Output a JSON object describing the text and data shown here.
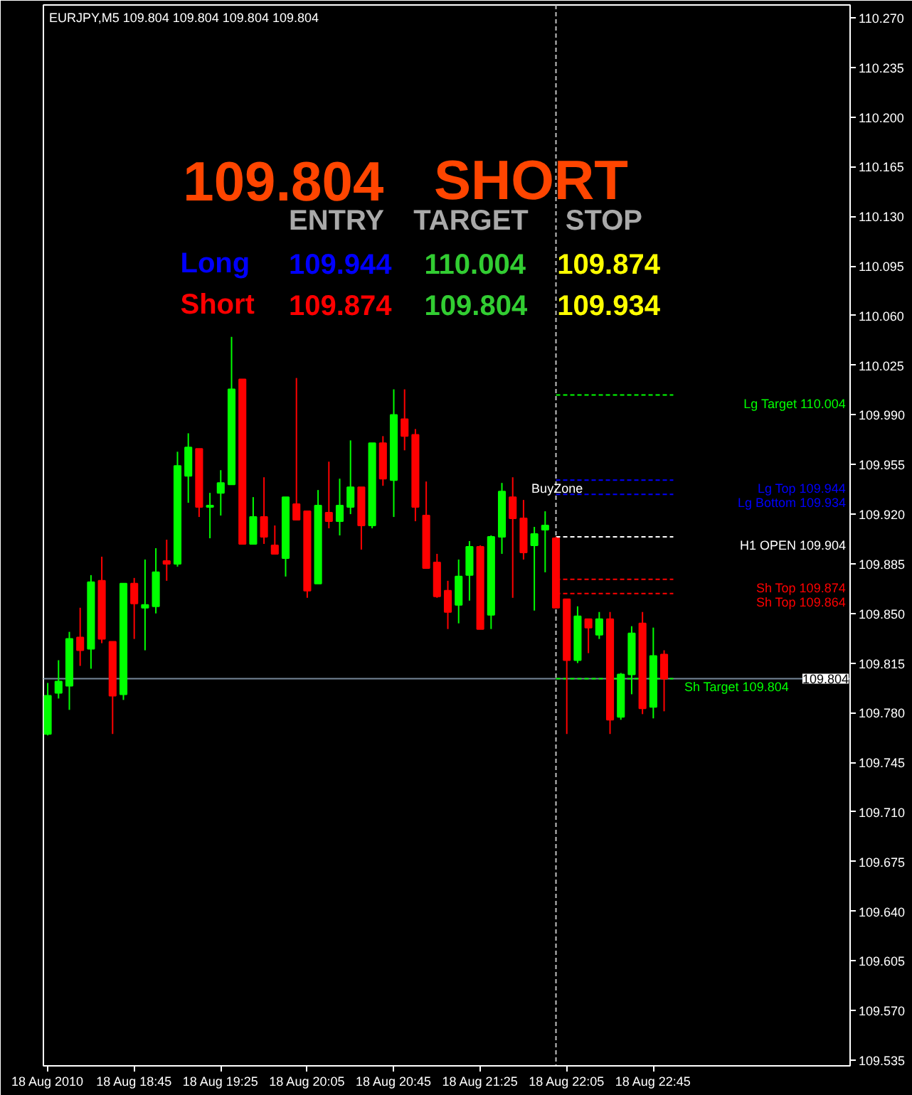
{
  "chart_data": {
    "type": "candlestick",
    "title": "EURJPY,M5 109.804 109.804 109.804 109.804",
    "x": [
      "2010-08-18T18:05",
      "2010-08-18T18:10",
      "2010-08-18T18:15",
      "2010-08-18T18:20",
      "2010-08-18T18:25",
      "2010-08-18T18:30",
      "2010-08-18T18:35",
      "2010-08-18T18:40",
      "2010-08-18T18:45",
      "2010-08-18T18:50",
      "2010-08-18T18:55",
      "2010-08-18T19:00",
      "2010-08-18T19:05",
      "2010-08-18T19:10",
      "2010-08-18T19:15",
      "2010-08-18T19:20",
      "2010-08-18T19:25",
      "2010-08-18T19:30",
      "2010-08-18T19:35",
      "2010-08-18T19:40",
      "2010-08-18T19:45",
      "2010-08-18T19:50",
      "2010-08-18T19:55",
      "2010-08-18T20:00",
      "2010-08-18T20:05",
      "2010-08-18T20:10",
      "2010-08-18T20:15",
      "2010-08-18T20:20",
      "2010-08-18T20:25",
      "2010-08-18T20:30",
      "2010-08-18T20:35",
      "2010-08-18T20:40",
      "2010-08-18T20:45",
      "2010-08-18T20:50",
      "2010-08-18T20:55",
      "2010-08-18T21:00",
      "2010-08-18T21:05",
      "2010-08-18T21:10",
      "2010-08-18T21:15",
      "2010-08-18T21:20",
      "2010-08-18T21:25",
      "2010-08-18T21:30",
      "2010-08-18T21:35",
      "2010-08-18T21:40",
      "2010-08-18T21:45",
      "2010-08-18T21:50",
      "2010-08-18T21:55",
      "2010-08-18T22:00",
      "2010-08-18T22:05",
      "2010-08-18T22:10",
      "2010-08-18T22:15",
      "2010-08-18T22:20",
      "2010-08-18T22:25",
      "2010-08-18T22:30",
      "2010-08-18T22:35",
      "2010-08-18T22:40",
      "2010-08-18T22:45",
      "2010-08-18T22:50"
    ],
    "ohlc": [
      [
        109.765,
        109.801,
        109.764,
        109.792
      ],
      [
        109.794,
        109.817,
        109.79,
        109.802
      ],
      [
        109.799,
        109.837,
        109.782,
        109.832
      ],
      [
        109.833,
        109.854,
        109.813,
        109.824
      ],
      [
        109.825,
        109.877,
        109.811,
        109.872
      ],
      [
        109.873,
        109.89,
        109.829,
        109.832
      ],
      [
        109.83,
        109.83,
        109.765,
        109.792
      ],
      [
        109.793,
        109.871,
        109.789,
        109.871
      ],
      [
        109.871,
        109.875,
        109.832,
        109.857
      ],
      [
        109.854,
        109.888,
        109.824,
        109.856
      ],
      [
        109.855,
        109.896,
        109.85,
        109.879
      ],
      [
        109.887,
        109.902,
        109.873,
        109.885
      ],
      [
        109.885,
        109.964,
        109.883,
        109.954
      ],
      [
        109.947,
        109.977,
        109.928,
        109.967
      ],
      [
        109.966,
        109.966,
        109.918,
        109.925
      ],
      [
        109.925,
        109.935,
        109.903,
        109.926
      ],
      [
        109.935,
        109.951,
        109.919,
        109.942
      ],
      [
        109.941,
        110.045,
        109.941,
        110.008
      ],
      [
        110.015,
        110.015,
        109.899,
        109.899
      ],
      [
        109.899,
        109.932,
        109.899,
        109.918
      ],
      [
        109.918,
        109.946,
        109.899,
        109.904
      ],
      [
        109.898,
        109.912,
        109.892,
        109.892
      ],
      [
        109.889,
        109.932,
        109.876,
        109.932
      ],
      [
        109.927,
        110.016,
        109.916,
        109.916
      ],
      [
        109.922,
        109.922,
        109.861,
        109.866
      ],
      [
        109.871,
        109.937,
        109.871,
        109.926
      ],
      [
        109.921,
        109.957,
        109.91,
        109.915
      ],
      [
        109.915,
        109.945,
        109.905,
        109.926
      ],
      [
        109.925,
        109.972,
        109.92,
        109.939
      ],
      [
        109.939,
        109.939,
        109.895,
        109.912
      ],
      [
        109.912,
        109.97,
        109.91,
        109.97
      ],
      [
        109.97,
        109.975,
        109.94,
        109.945
      ],
      [
        109.944,
        110.008,
        109.918,
        109.99
      ],
      [
        109.987,
        110.008,
        109.965,
        109.975
      ],
      [
        109.976,
        109.98,
        109.915,
        109.925
      ],
      [
        109.919,
        109.943,
        109.882,
        109.882
      ],
      [
        109.886,
        109.892,
        109.861,
        109.862
      ],
      [
        109.866,
        109.873,
        109.839,
        109.851
      ],
      [
        109.856,
        109.888,
        109.843,
        109.876
      ],
      [
        109.877,
        109.901,
        109.859,
        109.897
      ],
      [
        109.897,
        109.898,
        109.839,
        109.839
      ],
      [
        109.849,
        109.905,
        109.839,
        109.904
      ],
      [
        109.904,
        109.942,
        109.892,
        109.936
      ],
      [
        109.932,
        109.946,
        109.861,
        109.917
      ],
      [
        109.917,
        109.93,
        109.888,
        109.893
      ],
      [
        109.898,
        109.911,
        109.852,
        109.906
      ],
      [
        109.909,
        109.922,
        109.879,
        109.912
      ],
      [
        109.903,
        109.904,
        109.854,
        109.854
      ],
      [
        109.86,
        109.86,
        109.765,
        109.817
      ],
      [
        109.817,
        109.855,
        109.815,
        109.848
      ],
      [
        109.846,
        109.846,
        109.822,
        109.84
      ],
      [
        109.835,
        109.851,
        109.832,
        109.846
      ],
      [
        109.846,
        109.851,
        109.765,
        109.775
      ],
      [
        109.777,
        109.808,
        109.775,
        109.807
      ],
      [
        109.807,
        109.841,
        109.793,
        109.836
      ],
      [
        109.843,
        109.851,
        109.779,
        109.783
      ],
      [
        109.784,
        109.84,
        109.776,
        109.82
      ],
      [
        109.821,
        109.824,
        109.781,
        109.804
      ]
    ],
    "colors": [
      "#00ff00",
      "#00ff00",
      "#00ff00",
      "#ff0000",
      "#00ff00",
      "#ff0000",
      "#ff0000",
      "#00ff00",
      "#ff0000",
      "#00ff00",
      "#00ff00",
      "#ff0000",
      "#00ff00",
      "#00ff00",
      "#ff0000",
      "#00ff00",
      "#00ff00",
      "#00ff00",
      "#ff0000",
      "#00ff00",
      "#ff0000",
      "#ff0000",
      "#00ff00",
      "#ff0000",
      "#ff0000",
      "#00ff00",
      "#ff0000",
      "#00ff00",
      "#00ff00",
      "#ff0000",
      "#00ff00",
      "#ff0000",
      "#00ff00",
      "#ff0000",
      "#ff0000",
      "#ff0000",
      "#ff0000",
      "#ff0000",
      "#00ff00",
      "#00ff00",
      "#ff0000",
      "#00ff00",
      "#00ff00",
      "#ff0000",
      "#ff0000",
      "#00ff00",
      "#00ff00",
      "#ff0000",
      "#ff0000",
      "#00ff00",
      "#ff0000",
      "#00ff00",
      "#ff0000",
      "#00ff00",
      "#00ff00",
      "#ff0000",
      "#00ff00",
      "#ff0000"
    ],
    "xlim": [
      "2010-08-18T18:03",
      "2010-08-19T00:16"
    ],
    "xticks": [
      {
        "value": "2010-08-18T18:05",
        "label": "18 Aug 2010"
      },
      {
        "value": "2010-08-18T18:45",
        "label": "18 Aug 18:45"
      },
      {
        "value": "2010-08-18T19:25",
        "label": "18 Aug 19:25"
      },
      {
        "value": "2010-08-18T20:05",
        "label": "18 Aug 20:05"
      },
      {
        "value": "2010-08-18T20:45",
        "label": "18 Aug 20:45"
      },
      {
        "value": "2010-08-18T21:25",
        "label": "18 Aug 21:25"
      },
      {
        "value": "2010-08-18T22:05",
        "label": "18 Aug 22:05"
      },
      {
        "value": "2010-08-18T22:45",
        "label": "18 Aug 22:45"
      }
    ],
    "ylim": [
      109.531,
      110.279
    ],
    "yticks": [
      {
        "value": 109.535,
        "label": "109.535"
      },
      {
        "value": 109.57,
        "label": "109.570"
      },
      {
        "value": 109.605,
        "label": "109.605"
      },
      {
        "value": 109.64,
        "label": "109.640"
      },
      {
        "value": 109.675,
        "label": "109.675"
      },
      {
        "value": 109.71,
        "label": "109.710"
      },
      {
        "value": 109.745,
        "label": "109.745"
      },
      {
        "value": 109.78,
        "label": "109.780"
      },
      {
        "value": 109.815,
        "label": "109.815"
      },
      {
        "value": 109.85,
        "label": "109.850"
      },
      {
        "value": 109.885,
        "label": "109.885"
      },
      {
        "value": 109.92,
        "label": "109.920"
      },
      {
        "value": 109.955,
        "label": "109.955"
      },
      {
        "value": 109.99,
        "label": "109.990"
      },
      {
        "value": 110.025,
        "label": "110.025"
      },
      {
        "value": 110.06,
        "label": "110.060"
      },
      {
        "value": 110.095,
        "label": "110.095"
      },
      {
        "value": 110.13,
        "label": "110.130"
      },
      {
        "value": 110.165,
        "label": "110.165"
      },
      {
        "value": 110.2,
        "label": "110.200"
      },
      {
        "value": 110.235,
        "label": "110.235"
      },
      {
        "value": 110.27,
        "label": "110.270"
      }
    ],
    "ref_lines": [
      {
        "axis": "x",
        "value": "2010-08-18T22:00",
        "color": "#c0c0c0",
        "line_style": "dashed"
      },
      {
        "axis": "y",
        "value": 109.804,
        "label": "109.804",
        "color": "#778899",
        "line_style": "solid"
      },
      {
        "axis": "y",
        "value": 110.004,
        "label": "Lg Target 110.004",
        "color": "#00ff00",
        "line_style": "dashed"
      },
      {
        "axis": "y",
        "value": 109.944,
        "label": "Lg Top 109.944",
        "color": "#0000ff",
        "line_style": "dashed"
      },
      {
        "axis": "y",
        "value": 109.934,
        "label": "Lg Bottom 109.934",
        "color": "#0000ff",
        "line_style": "dashed"
      },
      {
        "axis": "y",
        "value": 109.904,
        "label": "H1 OPEN 109.904",
        "color": "#ffffff",
        "line_style": "dashed"
      },
      {
        "axis": "y",
        "value": 109.874,
        "label": "Sh Top 109.874",
        "color": "#ff0000",
        "line_style": "dashed"
      },
      {
        "axis": "y",
        "value": 109.864,
        "label": "Sh Top 109.864",
        "color": "#ff0000",
        "line_style": "dashed"
      },
      {
        "axis": "y",
        "value": 109.804,
        "label": "Sh Target 109.804",
        "color": "#00ff00",
        "line_style": "dashed"
      }
    ],
    "annotations": [
      "109.804",
      "SHORT",
      "ENTRY",
      "TARGET",
      "STOP",
      "Long",
      "109.944",
      "110.004",
      "109.874",
      "Short",
      "109.874",
      "109.804",
      "109.934",
      "BuyZone"
    ]
  }
}
